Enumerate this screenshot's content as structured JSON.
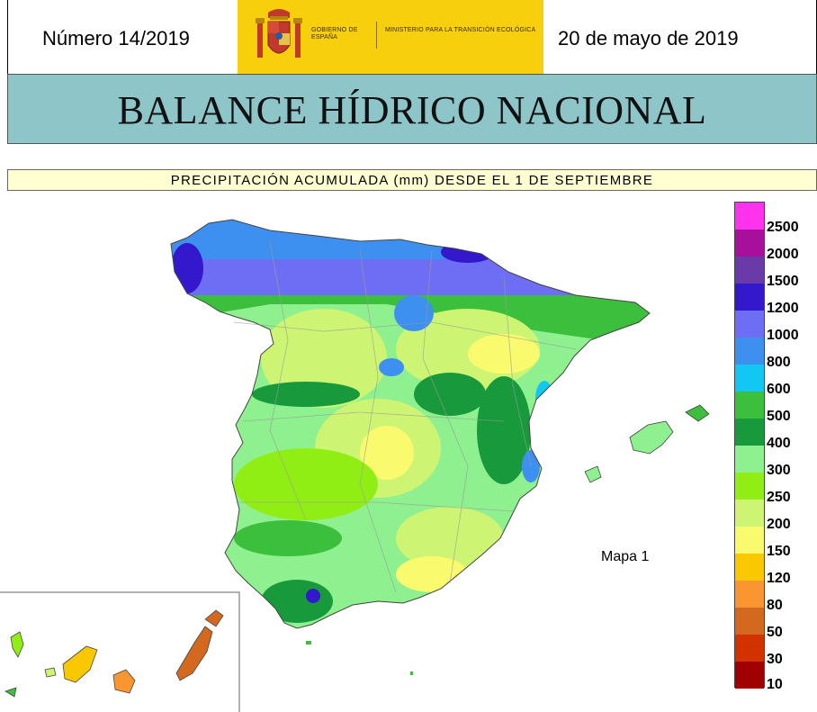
{
  "header": {
    "issue": "Número 14/2019",
    "date": "20 de mayo de 2019",
    "gov_line1": "GOBIERNO DE ESPAÑA",
    "gov_line2": "MINISTERIO PARA LA TRANSICIÓN ECOLÓGICA",
    "banner_color": "#f7cf0c"
  },
  "title": "BALANCE HÍDRICO NACIONAL",
  "subtitle": "PRECIPITACIÓN ACUMULADA (mm) DESDE EL 1 DE SEPTIEMBRE",
  "map": {
    "label": "Mapa 1",
    "legend": [
      {
        "label": "2500",
        "color": "#ff33ee"
      },
      {
        "label": "2000",
        "color": "#a8109c"
      },
      {
        "label": "1500",
        "color": "#6a3aa8"
      },
      {
        "label": "1200",
        "color": "#3318cc"
      },
      {
        "label": "1000",
        "color": "#6e6ef5"
      },
      {
        "label": "800",
        "color": "#3d8ff0"
      },
      {
        "label": "600",
        "color": "#12c7f2"
      },
      {
        "label": "500",
        "color": "#3cbf3c"
      },
      {
        "label": "400",
        "color": "#189a3c"
      },
      {
        "label": "300",
        "color": "#8ef08e"
      },
      {
        "label": "250",
        "color": "#90ee14"
      },
      {
        "label": "200",
        "color": "#cdf573"
      },
      {
        "label": "150",
        "color": "#fafa6e"
      },
      {
        "label": "120",
        "color": "#fac800"
      },
      {
        "label": "80",
        "color": "#fa9632"
      },
      {
        "label": "50",
        "color": "#d2691e"
      },
      {
        "label": "30",
        "color": "#d23200"
      },
      {
        "label": "10",
        "color": "#a00000"
      }
    ]
  }
}
